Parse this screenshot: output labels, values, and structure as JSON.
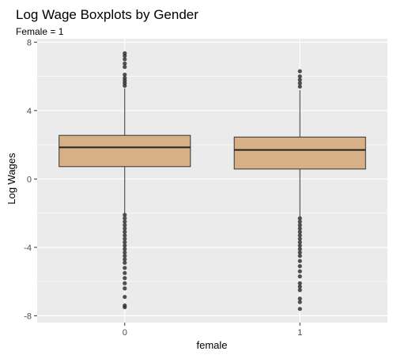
{
  "chart_data": {
    "type": "boxplot",
    "title": "Log Wage Boxplots by Gender",
    "subtitle": "Female = 1",
    "xlabel": "female",
    "ylabel": "Log Wages",
    "categories": [
      "0",
      "1"
    ],
    "ylim": [
      -8.4,
      8.2
    ],
    "y_ticks": [
      -8,
      -4,
      0,
      4,
      8
    ],
    "grid": true,
    "boxes": [
      {
        "category": "0",
        "q1": 0.72,
        "median": 1.85,
        "q3": 2.55,
        "whisker_low": -2.0,
        "whisker_high": 5.3,
        "outliers_high": [
          5.45,
          5.6,
          5.75,
          5.9,
          6.1,
          6.55,
          6.75,
          7.0,
          7.2,
          7.35
        ],
        "outliers_low": [
          -2.1,
          -2.3,
          -2.5,
          -2.7,
          -2.9,
          -3.1,
          -3.3,
          -3.5,
          -3.7,
          -3.9,
          -4.1,
          -4.3,
          -4.5,
          -4.7,
          -4.9,
          -5.2,
          -5.5,
          -5.8,
          -6.1,
          -6.4,
          -6.9,
          -7.4,
          -7.5
        ]
      },
      {
        "category": "1",
        "q1": 0.58,
        "median": 1.7,
        "q3": 2.45,
        "whisker_low": -2.2,
        "whisker_high": 5.2,
        "outliers_high": [
          5.4,
          5.6,
          5.8,
          6.0,
          6.3
        ],
        "outliers_low": [
          -2.3,
          -2.5,
          -2.7,
          -2.9,
          -3.1,
          -3.3,
          -3.5,
          -3.7,
          -3.9,
          -4.1,
          -4.3,
          -4.5,
          -4.8,
          -5.1,
          -5.4,
          -5.7,
          -6.1,
          -6.3,
          -6.5,
          -7.0,
          -7.2,
          -7.6
        ]
      }
    ],
    "colors": {
      "box_fill": "#d8b087",
      "box_stroke": "#333333",
      "outlier": "#333333",
      "panel_bg": "#ebebeb",
      "grid": "#ffffff"
    }
  }
}
